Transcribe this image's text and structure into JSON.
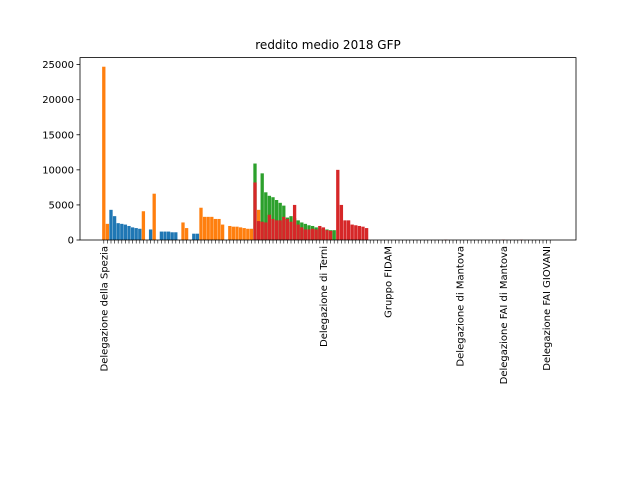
{
  "chart_data": {
    "type": "bar",
    "title": "reddito medio  2018  GFP",
    "xlabel": "",
    "ylabel": "",
    "ylim": [
      0,
      26000
    ],
    "yticks": [
      0,
      5000,
      10000,
      15000,
      20000,
      25000
    ],
    "ytick_labels": [
      "0",
      "5000",
      "10000",
      "15000",
      "20000",
      "25000"
    ],
    "grid": false,
    "legend": "none",
    "colors": {
      "blue": "#1f77b4",
      "orange": "#ff7f0e",
      "green": "#2ca02c",
      "red": "#d62728"
    },
    "visible_category_labels": [
      "Delegazione della Spezia",
      "Delegazione di Terni",
      "Gruppo FIDAM",
      "Delegazione di Mantova",
      "Delegazione FAI di Mantova",
      "Delegazione FAI GIOVANI"
    ],
    "series": [
      {
        "color": "orange",
        "bars": [
          {
            "x": 1,
            "y": 24700
          },
          {
            "x": 2,
            "y": 2300
          },
          {
            "x": 12,
            "y": 4100
          },
          {
            "x": 15,
            "y": 6600
          },
          {
            "x": 23,
            "y": 2500
          },
          {
            "x": 24,
            "y": 1700
          },
          {
            "x": 28,
            "y": 4600
          },
          {
            "x": 29,
            "y": 3300
          },
          {
            "x": 30,
            "y": 3300
          },
          {
            "x": 31,
            "y": 3300
          },
          {
            "x": 32,
            "y": 3000
          },
          {
            "x": 33,
            "y": 3000
          },
          {
            "x": 34,
            "y": 2200
          },
          {
            "x": 36,
            "y": 2000
          },
          {
            "x": 37,
            "y": 1900
          },
          {
            "x": 38,
            "y": 1900
          },
          {
            "x": 39,
            "y": 1800
          },
          {
            "x": 40,
            "y": 1700
          },
          {
            "x": 41,
            "y": 1600
          },
          {
            "x": 42,
            "y": 1600
          },
          {
            "x": 44,
            "y": 4300
          }
        ]
      },
      {
        "color": "blue",
        "bars": [
          {
            "x": 3,
            "y": 4300
          },
          {
            "x": 4,
            "y": 3400
          },
          {
            "x": 5,
            "y": 2400
          },
          {
            "x": 6,
            "y": 2300
          },
          {
            "x": 7,
            "y": 2200
          },
          {
            "x": 8,
            "y": 2000
          },
          {
            "x": 9,
            "y": 1800
          },
          {
            "x": 10,
            "y": 1700
          },
          {
            "x": 11,
            "y": 1600
          },
          {
            "x": 14,
            "y": 1500
          },
          {
            "x": 17,
            "y": 1200
          },
          {
            "x": 18,
            "y": 1200
          },
          {
            "x": 19,
            "y": 1200
          },
          {
            "x": 20,
            "y": 1100
          },
          {
            "x": 21,
            "y": 1100
          },
          {
            "x": 26,
            "y": 900
          },
          {
            "x": 27,
            "y": 900
          }
        ]
      },
      {
        "color": "green",
        "bars": [
          {
            "x": 43,
            "y": 10900
          },
          {
            "x": 45,
            "y": 9500
          },
          {
            "x": 46,
            "y": 6800
          },
          {
            "x": 47,
            "y": 6300
          },
          {
            "x": 48,
            "y": 6100
          },
          {
            "x": 49,
            "y": 5700
          },
          {
            "x": 50,
            "y": 5300
          },
          {
            "x": 51,
            "y": 4900
          },
          {
            "x": 52,
            "y": 3200
          },
          {
            "x": 53,
            "y": 3400
          },
          {
            "x": 54,
            "y": 3100
          },
          {
            "x": 55,
            "y": 2800
          },
          {
            "x": 56,
            "y": 2500
          },
          {
            "x": 57,
            "y": 2300
          },
          {
            "x": 58,
            "y": 2100
          },
          {
            "x": 59,
            "y": 2000
          },
          {
            "x": 60,
            "y": 1800
          },
          {
            "x": 61,
            "y": 1700
          },
          {
            "x": 62,
            "y": 1600
          },
          {
            "x": 63,
            "y": 1500
          },
          {
            "x": 64,
            "y": 1400
          },
          {
            "x": 65,
            "y": 1400
          }
        ]
      },
      {
        "color": "red",
        "bars": [
          {
            "x": 43,
            "y": 8200
          },
          {
            "x": 44,
            "y": 2700
          },
          {
            "x": 45,
            "y": 2600
          },
          {
            "x": 46,
            "y": 2500
          },
          {
            "x": 47,
            "y": 3600
          },
          {
            "x": 48,
            "y": 3000
          },
          {
            "x": 49,
            "y": 2800
          },
          {
            "x": 50,
            "y": 2800
          },
          {
            "x": 51,
            "y": 3300
          },
          {
            "x": 52,
            "y": 3000
          },
          {
            "x": 53,
            "y": 2600
          },
          {
            "x": 54,
            "y": 5000
          },
          {
            "x": 55,
            "y": 2200
          },
          {
            "x": 56,
            "y": 1800
          },
          {
            "x": 57,
            "y": 1500
          },
          {
            "x": 58,
            "y": 1500
          },
          {
            "x": 59,
            "y": 1600
          },
          {
            "x": 60,
            "y": 1500
          },
          {
            "x": 61,
            "y": 2000
          },
          {
            "x": 62,
            "y": 1800
          },
          {
            "x": 63,
            "y": 1400
          },
          {
            "x": 64,
            "y": 1300
          },
          {
            "x": 66,
            "y": 10000
          },
          {
            "x": 67,
            "y": 5000
          },
          {
            "x": 68,
            "y": 2800
          },
          {
            "x": 69,
            "y": 2800
          },
          {
            "x": 70,
            "y": 2200
          },
          {
            "x": 71,
            "y": 2100
          },
          {
            "x": 72,
            "y": 2000
          },
          {
            "x": 73,
            "y": 1900
          },
          {
            "x": 74,
            "y": 1700
          },
          {
            "x": 96,
            "y": 40
          },
          {
            "x": 112,
            "y": 50
          },
          {
            "x": 117,
            "y": 40
          }
        ]
      }
    ]
  }
}
